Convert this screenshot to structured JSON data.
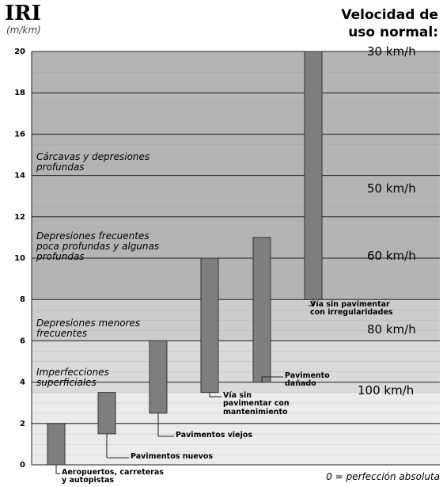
{
  "chart_data": {
    "type": "floating-bar",
    "title": "IRI",
    "subtitle": "(m/km)",
    "right_title": "Velocidad de\nuso normal:",
    "footnote": "0 = perfección absoluta",
    "categories": [
      "Aeropuertos, carreteras\ny autopistas",
      "Pavimentos nuevos",
      "Pavimentos viejos",
      "Vía sin\npavimentar  con\nmantenimiento",
      "Pavimento\ndañado",
      "Vía sin pavimentar\ncon irregularidades"
    ],
    "low": [
      0,
      1.5,
      2.5,
      3.5,
      4,
      8
    ],
    "high": [
      2,
      3.5,
      6,
      10,
      11,
      20
    ],
    "color": "#7f7f7f",
    "ylim": [
      0,
      20
    ],
    "yticks": [
      0,
      2,
      4,
      6,
      8,
      10,
      12,
      14,
      16,
      18,
      20
    ],
    "grid": true,
    "bands": [
      {
        "from": 0,
        "to": 3.5,
        "color": "#ebebeb"
      },
      {
        "from": 3.5,
        "to": 6,
        "color": "#dadada"
      },
      {
        "from": 6,
        "to": 8,
        "color": "#cccccc"
      },
      {
        "from": 8,
        "to": 20,
        "color": "#b4b4b4"
      }
    ],
    "condition_labels": [
      "Cárcavas y depresiones\nprofundas",
      "Depresiones frecuentes\npoca profundas y algunas\nprofundas",
      "Depresiones menores\nfrecuentes",
      "Imperfecciones\nsuperficiales"
    ],
    "speed_labels": [
      "30 km/h",
      "50 km/h",
      "60 km/h",
      "80 km/h",
      "100 km/h"
    ]
  }
}
